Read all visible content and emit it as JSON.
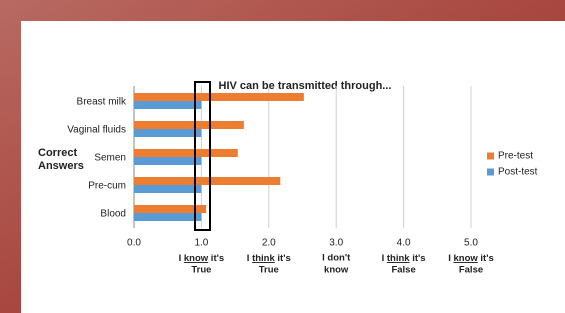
{
  "chart_data": {
    "type": "bar",
    "orientation": "horizontal",
    "title": "HIV can be transmitted through...",
    "y_axis_title": [
      "Correct",
      "Answers"
    ],
    "categories": [
      "Breast milk",
      "Vaginal fluids",
      "Semen",
      "Pre-cum",
      "Blood"
    ],
    "series": [
      {
        "name": "Pre-test",
        "color": "#ED7D31",
        "values": [
          2.52,
          1.63,
          1.54,
          2.17,
          1.07
        ]
      },
      {
        "name": "Post-test",
        "color": "#5B9BD5",
        "values": [
          1.0,
          1.0,
          1.0,
          1.0,
          1.0
        ]
      }
    ],
    "xlim": [
      0,
      5
    ],
    "xticks": [
      {
        "value": 0,
        "label": "0.0"
      },
      {
        "value": 1,
        "label": "1.0"
      },
      {
        "value": 2,
        "label": "2.0"
      },
      {
        "value": 3,
        "label": "3.0"
      },
      {
        "value": 4,
        "label": "4.0"
      },
      {
        "value": 5,
        "label": "5.0"
      }
    ],
    "x_descriptions": [
      {
        "value": 1,
        "prefix": "I ",
        "emphasis": "know",
        "suffix": " it's",
        "line2": "True"
      },
      {
        "value": 2,
        "prefix": "I ",
        "emphasis": "think",
        "suffix": " it's",
        "line2": "True"
      },
      {
        "value": 3,
        "line1": "I don't",
        "line2": "know"
      },
      {
        "value": 4,
        "prefix": "I ",
        "emphasis": "think",
        "suffix": " it's",
        "line2": "False"
      },
      {
        "value": 5,
        "prefix": "I ",
        "emphasis": "know",
        "suffix": " it's",
        "line2": "False"
      }
    ],
    "grid": true,
    "legend": "right"
  }
}
